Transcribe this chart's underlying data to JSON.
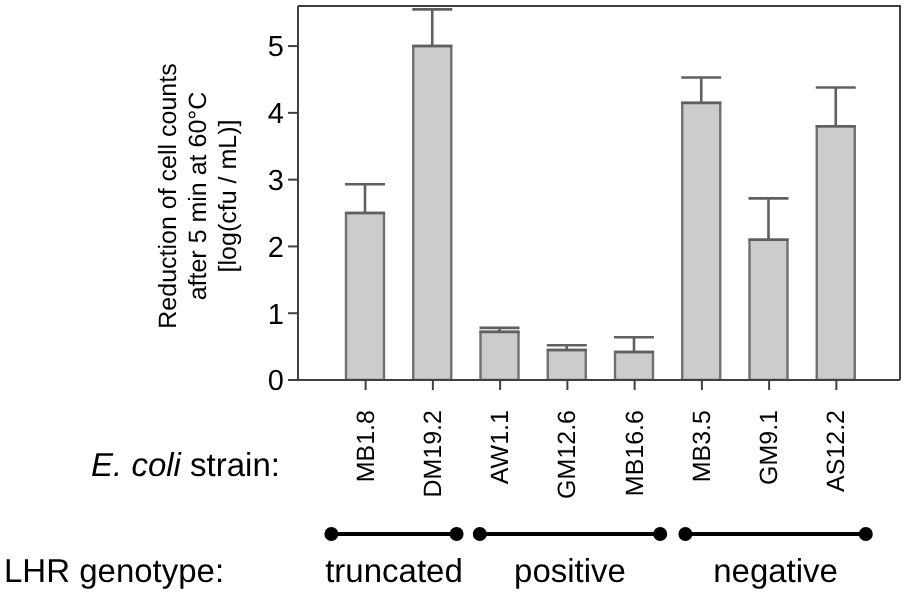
{
  "chart_data": {
    "type": "bar",
    "ylabel": "Reduction of cell counts\nafter 5 min at 60°C\n[log(cfu / mL)]",
    "xlabel": "E. coli strain:",
    "categories": [
      "MB1.8",
      "DM19.2",
      "AW1.1",
      "GM12.6",
      "MB16.6",
      "MB3.5",
      "GM9.1",
      "AS12.2"
    ],
    "values": [
      2.5,
      5.0,
      0.72,
      0.45,
      0.42,
      4.15,
      2.1,
      3.8
    ],
    "errors": [
      [
        2.5,
        2.93
      ],
      [
        5.0,
        5.55
      ],
      [
        0.72,
        0.78
      ],
      [
        0.45,
        0.52
      ],
      [
        0.42,
        0.64
      ],
      [
        4.15,
        4.53
      ],
      [
        2.1,
        2.72
      ],
      [
        3.8,
        4.38
      ]
    ],
    "color": "#cccccc",
    "ylim": [
      0,
      5.6
    ],
    "yticks": [
      0,
      1,
      2,
      3,
      4,
      5
    ],
    "grid": false,
    "annotations": [
      "LHR genotype:",
      "truncated",
      "positive",
      "negative"
    ]
  }
}
